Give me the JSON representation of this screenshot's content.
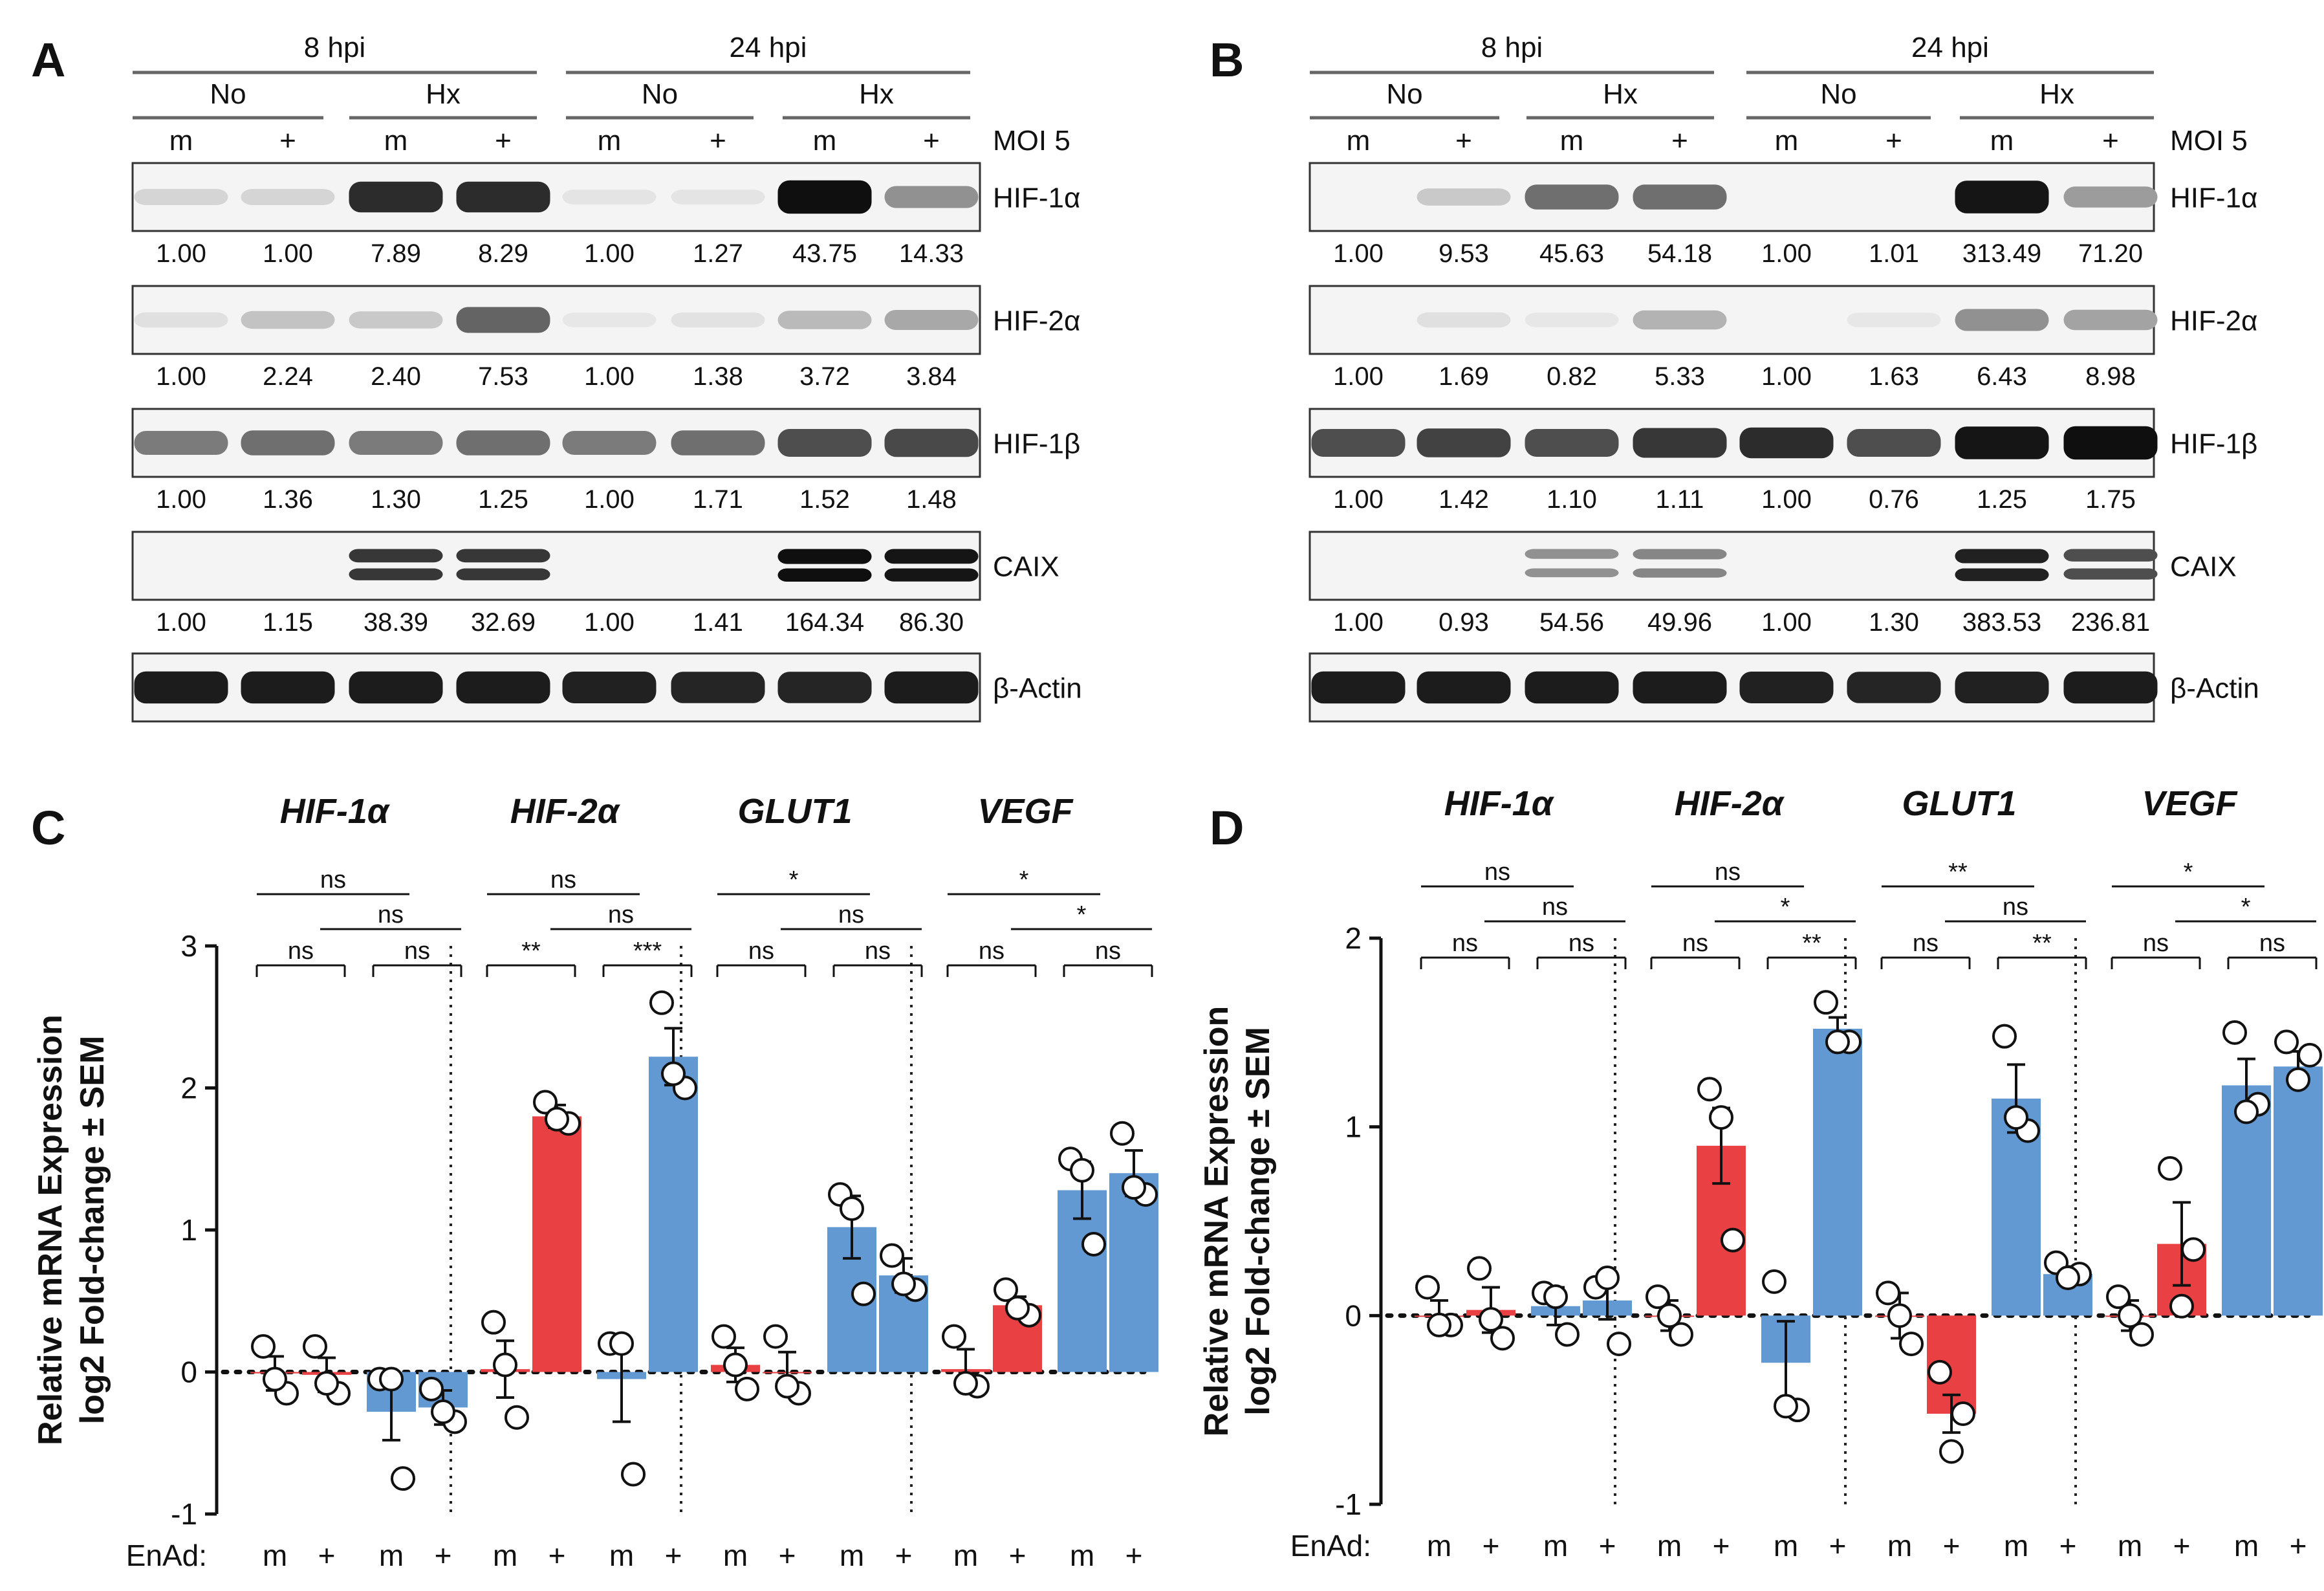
{
  "colors": {
    "normoxia": "#e0393e",
    "hypoxia": "#5b95d0",
    "bar_red": "#e84043",
    "bar_blue": "#6399d3"
  },
  "panel_labels": [
    "A",
    "B",
    "C",
    "D"
  ],
  "blots": [
    {
      "label": "A",
      "time_labels": [
        "8 hpi",
        "24 hpi"
      ],
      "condition_labels": [
        "No",
        "Hx",
        "No",
        "Hx"
      ],
      "lane_labels": [
        "m",
        "+",
        "m",
        "+",
        "m",
        "+",
        "m",
        "+"
      ],
      "moi_label": "MOI 5",
      "rows": [
        {
          "name": "HIF-1α",
          "values": [
            "1.00",
            "1.00",
            "7.89",
            "8.29",
            "1.00",
            "1.27",
            "43.75",
            "14.33"
          ],
          "bands": [
            0.1,
            0.1,
            0.85,
            0.85,
            0.03,
            0.03,
            0.98,
            0.4
          ]
        },
        {
          "name": "HIF-2α",
          "values": [
            "1.00",
            "2.24",
            "2.40",
            "7.53",
            "1.00",
            "1.38",
            "3.72",
            "3.84"
          ],
          "bands": [
            0.05,
            0.18,
            0.15,
            0.6,
            0.02,
            0.04,
            0.22,
            0.3
          ]
        },
        {
          "name": "HIF-1β",
          "values": [
            "1.00",
            "1.36",
            "1.30",
            "1.25",
            "1.00",
            "1.71",
            "1.52",
            "1.48"
          ],
          "bands": [
            0.5,
            0.55,
            0.5,
            0.55,
            0.5,
            0.55,
            0.7,
            0.72
          ]
        },
        {
          "name": "CAIX",
          "values": [
            "1.00",
            "1.15",
            "38.39",
            "32.69",
            "1.00",
            "1.41",
            "164.34",
            "86.30"
          ],
          "bands": [
            0.0,
            0.0,
            0.8,
            0.8,
            0.0,
            0.0,
            0.98,
            0.95
          ]
        },
        {
          "name": "β-Actin",
          "values": [],
          "bands": [
            0.92,
            0.92,
            0.92,
            0.92,
            0.9,
            0.88,
            0.88,
            0.92
          ]
        }
      ]
    },
    {
      "label": "B",
      "time_labels": [
        "8 hpi",
        "24 hpi"
      ],
      "condition_labels": [
        "No",
        "Hx",
        "No",
        "Hx"
      ],
      "lane_labels": [
        "m",
        "+",
        "m",
        "+",
        "m",
        "+",
        "m",
        "+"
      ],
      "moi_label": "MOI 5",
      "rows": [
        {
          "name": "HIF-1α",
          "values": [
            "1.00",
            "9.53",
            "45.63",
            "54.18",
            "1.00",
            "1.01",
            "313.49",
            "71.20"
          ],
          "bands": [
            0.0,
            0.15,
            0.55,
            0.55,
            0.0,
            0.0,
            0.95,
            0.35
          ]
        },
        {
          "name": "HIF-2α",
          "values": [
            "1.00",
            "1.69",
            "0.82",
            "5.33",
            "1.00",
            "1.63",
            "6.43",
            "8.98"
          ],
          "bands": [
            0.0,
            0.05,
            0.02,
            0.25,
            0.0,
            0.02,
            0.4,
            0.32
          ]
        },
        {
          "name": "HIF-1β",
          "values": [
            "1.00",
            "1.42",
            "1.10",
            "1.11",
            "1.00",
            "0.76",
            "1.25",
            "1.75"
          ],
          "bands": [
            0.7,
            0.75,
            0.7,
            0.8,
            0.85,
            0.7,
            0.95,
            0.98
          ]
        },
        {
          "name": "CAIX",
          "values": [
            "1.00",
            "0.93",
            "54.56",
            "49.96",
            "1.00",
            "1.30",
            "383.53",
            "236.81"
          ],
          "bands": [
            0.0,
            0.0,
            0.4,
            0.45,
            0.0,
            0.0,
            0.9,
            0.7
          ]
        },
        {
          "name": "β-Actin",
          "values": [],
          "bands": [
            0.92,
            0.92,
            0.92,
            0.92,
            0.9,
            0.88,
            0.9,
            0.92
          ]
        }
      ]
    }
  ],
  "chart_data": [
    {
      "type": "bar",
      "label": "C",
      "ylabel_line1": "Relative mRNA Expression",
      "ylabel_line2": "log2 Fold-change ± SEM",
      "xlabel_prefix": "EnAd:",
      "bar_labels": [
        "m",
        "+",
        "m",
        "+"
      ],
      "ylim": [
        -1,
        3
      ],
      "yticks": [
        "-1",
        "0",
        "1",
        "2",
        "3"
      ],
      "genes": [
        {
          "name": "HIF-1α",
          "values": [
            -0.01,
            -0.02,
            -0.28,
            -0.25
          ],
          "sem": [
            0.12,
            0.12,
            0.2,
            0.12
          ],
          "points": [
            [
              0.18,
              -0.15,
              -0.05
            ],
            [
              0.18,
              -0.15,
              -0.08
            ],
            [
              -0.05,
              -0.75,
              -0.05
            ],
            [
              -0.12,
              -0.35,
              -0.28
            ]
          ],
          "sig": [
            {
              "a": 0,
              "b": 1,
              "t": "ns"
            },
            {
              "a": 2,
              "b": 3,
              "t": "ns"
            },
            {
              "a": 0,
              "b": 2,
              "t": "ns"
            },
            {
              "a": 1,
              "b": 3,
              "t": "ns"
            }
          ]
        },
        {
          "name": "HIF-2α",
          "values": [
            0.02,
            1.8,
            -0.05,
            2.22
          ],
          "sem": [
            0.2,
            0.08,
            0.3,
            0.2
          ],
          "points": [
            [
              0.35,
              -0.32,
              0.05
            ],
            [
              1.9,
              1.75,
              1.78
            ],
            [
              0.2,
              -0.72,
              0.2
            ],
            [
              2.6,
              2.0,
              2.1
            ]
          ],
          "sig": [
            {
              "a": 0,
              "b": 1,
              "t": "**"
            },
            {
              "a": 2,
              "b": 3,
              "t": "***"
            },
            {
              "a": 0,
              "b": 2,
              "t": "ns"
            },
            {
              "a": 1,
              "b": 3,
              "t": "ns"
            }
          ]
        },
        {
          "name": "GLUT1",
          "values": [
            0.05,
            0.0,
            1.02,
            0.68
          ],
          "sem": [
            0.12,
            0.14,
            0.22,
            0.12
          ],
          "points": [
            [
              0.25,
              -0.12,
              0.05
            ],
            [
              0.25,
              -0.15,
              -0.1
            ],
            [
              1.25,
              0.55,
              1.15
            ],
            [
              0.82,
              0.58,
              0.62
            ]
          ],
          "sig": [
            {
              "a": 0,
              "b": 1,
              "t": "ns"
            },
            {
              "a": 2,
              "b": 3,
              "t": "ns"
            },
            {
              "a": 0,
              "b": 2,
              "t": "*"
            },
            {
              "a": 1,
              "b": 3,
              "t": "ns"
            }
          ]
        },
        {
          "name": "VEGF",
          "values": [
            0.02,
            0.47,
            1.28,
            1.4
          ],
          "sem": [
            0.14,
            0.06,
            0.2,
            0.16
          ],
          "points": [
            [
              0.25,
              -0.1,
              -0.08
            ],
            [
              0.58,
              0.4,
              0.45
            ],
            [
              1.5,
              0.9,
              1.42
            ],
            [
              1.68,
              1.25,
              1.3
            ]
          ],
          "sig": [
            {
              "a": 0,
              "b": 1,
              "t": "ns"
            },
            {
              "a": 2,
              "b": 3,
              "t": "ns"
            },
            {
              "a": 0,
              "b": 2,
              "t": "*"
            },
            {
              "a": 1,
              "b": 3,
              "t": "*"
            }
          ]
        }
      ]
    },
    {
      "type": "bar",
      "label": "D",
      "ylabel_line1": "Relative mRNA Expression",
      "ylabel_line2": "log2 Fold-change ± SEM",
      "xlabel_prefix": "EnAd:",
      "bar_labels": [
        "m",
        "+",
        "m",
        "+"
      ],
      "ylim": [
        -1,
        2
      ],
      "yticks": [
        "-1",
        "0",
        "1",
        "2"
      ],
      "genes": [
        {
          "name": "HIF-1α",
          "values": [
            0.0,
            0.03,
            0.05,
            0.08
          ],
          "sem": [
            0.08,
            0.12,
            0.1,
            0.1
          ],
          "points": [
            [
              0.15,
              -0.05,
              -0.05
            ],
            [
              0.25,
              -0.12,
              -0.02
            ],
            [
              0.12,
              -0.1,
              0.1
            ],
            [
              0.15,
              -0.15,
              0.2
            ]
          ],
          "sig": [
            {
              "a": 0,
              "b": 1,
              "t": "ns"
            },
            {
              "a": 2,
              "b": 3,
              "t": "ns"
            },
            {
              "a": 0,
              "b": 2,
              "t": "ns"
            },
            {
              "a": 1,
              "b": 3,
              "t": "ns"
            }
          ]
        },
        {
          "name": "HIF-2α",
          "values": [
            0.0,
            0.9,
            -0.25,
            1.52
          ],
          "sem": [
            0.08,
            0.2,
            0.22,
            0.06
          ],
          "points": [
            [
              0.1,
              -0.1,
              0.0
            ],
            [
              1.2,
              0.4,
              1.05
            ],
            [
              0.18,
              -0.5,
              -0.48
            ],
            [
              1.66,
              1.45,
              1.45
            ]
          ],
          "sig": [
            {
              "a": 0,
              "b": 1,
              "t": "ns"
            },
            {
              "a": 2,
              "b": 3,
              "t": "**"
            },
            {
              "a": 0,
              "b": 2,
              "t": "ns"
            },
            {
              "a": 1,
              "b": 3,
              "t": "*"
            }
          ]
        },
        {
          "name": "GLUT1",
          "values": [
            0.0,
            -0.52,
            1.15,
            0.22
          ],
          "sem": [
            0.12,
            0.1,
            0.18,
            0.04
          ],
          "points": [
            [
              0.12,
              -0.15,
              0.0
            ],
            [
              -0.3,
              -0.52,
              -0.72
            ],
            [
              1.48,
              0.98,
              1.05
            ],
            [
              0.28,
              0.22,
              0.2
            ]
          ],
          "sig": [
            {
              "a": 0,
              "b": 1,
              "t": "ns"
            },
            {
              "a": 2,
              "b": 3,
              "t": "**"
            },
            {
              "a": 0,
              "b": 2,
              "t": "**"
            },
            {
              "a": 1,
              "b": 3,
              "t": "ns"
            }
          ]
        },
        {
          "name": "VEGF",
          "values": [
            0.0,
            0.38,
            1.22,
            1.32
          ],
          "sem": [
            0.08,
            0.22,
            0.14,
            0.08
          ],
          "points": [
            [
              0.1,
              -0.1,
              0.0
            ],
            [
              0.78,
              0.35,
              0.05
            ],
            [
              1.5,
              1.12,
              1.08
            ],
            [
              1.45,
              1.38,
              1.25
            ]
          ],
          "sig": [
            {
              "a": 0,
              "b": 1,
              "t": "ns"
            },
            {
              "a": 2,
              "b": 3,
              "t": "ns"
            },
            {
              "a": 0,
              "b": 2,
              "t": "*"
            },
            {
              "a": 1,
              "b": 3,
              "t": "*"
            }
          ]
        }
      ]
    }
  ]
}
